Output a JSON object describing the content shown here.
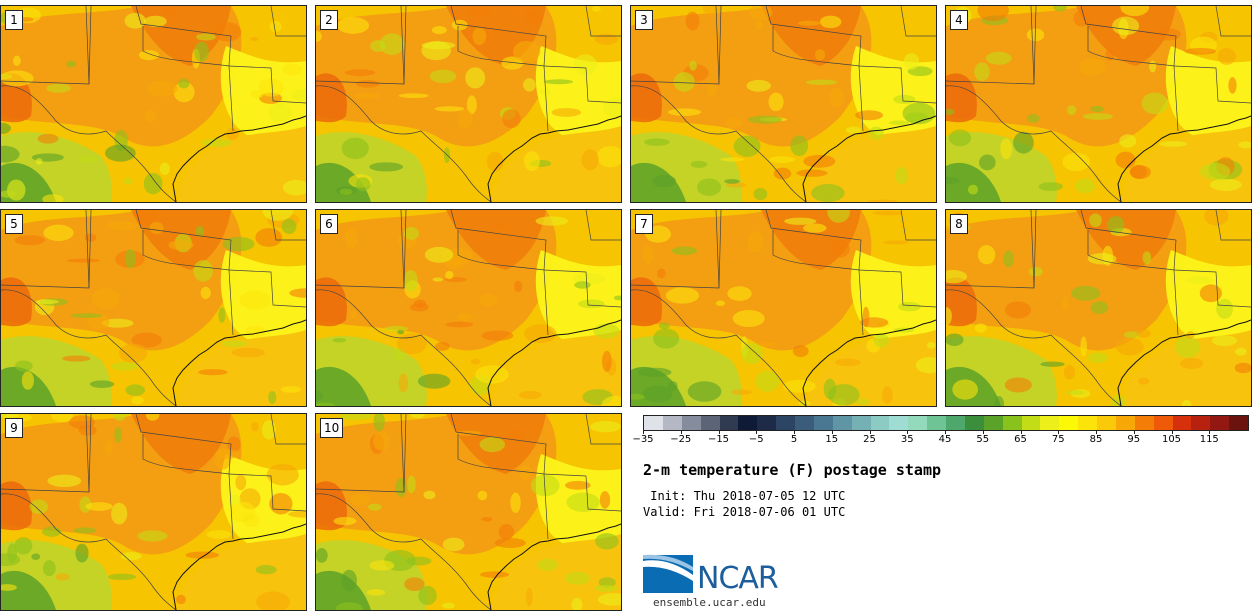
{
  "panels": [
    {
      "label": "1"
    },
    {
      "label": "2"
    },
    {
      "label": "3"
    },
    {
      "label": "4"
    },
    {
      "label": "5"
    },
    {
      "label": "6"
    },
    {
      "label": "7"
    },
    {
      "label": "8"
    },
    {
      "label": "9"
    },
    {
      "label": "10"
    }
  ],
  "colorbar": {
    "colors": [
      "#dfe2e9",
      "#b3b8c4",
      "#858c9b",
      "#5b6577",
      "#303b51",
      "#0f1b36",
      "#1d2b48",
      "#2d4564",
      "#3c5c7c",
      "#4a7792",
      "#5f95a4",
      "#74b0b4",
      "#8ccac4",
      "#9fdcd3",
      "#93d9bb",
      "#6fc495",
      "#4fa86b",
      "#3b8f3c",
      "#5aa228",
      "#8ac21d",
      "#c2dc16",
      "#ecef19",
      "#fcf906",
      "#fce40b",
      "#f9c90a",
      "#f7a806",
      "#f47d07",
      "#ef5a08",
      "#d7300c",
      "#b72110",
      "#921811",
      "#6b140f"
    ],
    "ticks": [
      "−35",
      "−25",
      "−15",
      "−5",
      "5",
      "15",
      "25",
      "35",
      "45",
      "55",
      "65",
      "75",
      "85",
      "95",
      "105",
      "115"
    ]
  },
  "title": "2-m temperature (F) postage stamp",
  "init": " Init: Thu 2018-07-05 12 UTC",
  "valid": "Valid: Fri 2018-07-06 01 UTC",
  "logo": {
    "wordmark": "NCAR",
    "brand_color": "#1b5e9b"
  },
  "site": "ensemble.ucar.edu"
}
